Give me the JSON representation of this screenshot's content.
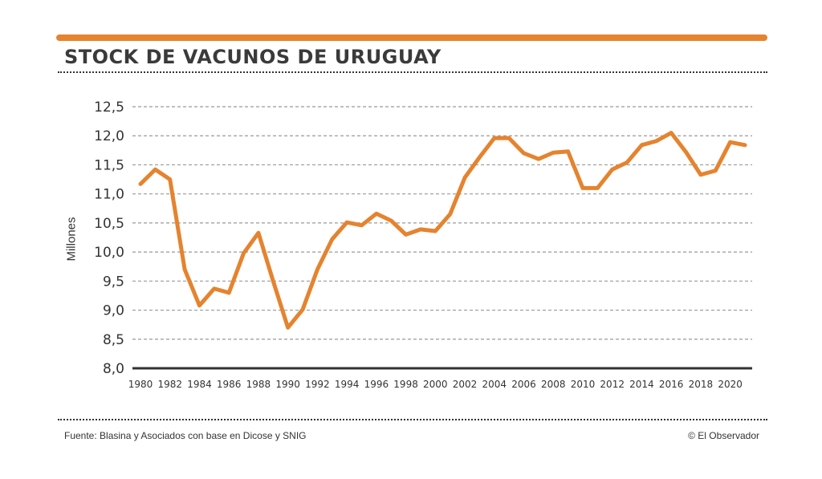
{
  "header": {
    "title": "STOCK DE VACUNOS DE URUGUAY"
  },
  "footer": {
    "source": "Fuente: Blasina y Asociados con base en Dicose y SNIG",
    "credit": "© El Observador"
  },
  "colors": {
    "accent": "#e5832f",
    "text": "#3a3a3a",
    "grid": "#999999"
  },
  "chart_data": {
    "type": "line",
    "title": "STOCK DE VACUNOS DE URUGUAY",
    "xlabel": "",
    "ylabel": "Millones",
    "ylim": [
      8.0,
      12.5
    ],
    "yticks": [
      "8,0",
      "8,5",
      "9,0",
      "9,5",
      "10,0",
      "10,5",
      "11,0",
      "11,5",
      "12,0",
      "12,5"
    ],
    "xticks": [
      "1980",
      "1982",
      "1984",
      "1986",
      "1988",
      "1990",
      "1992",
      "1994",
      "1996",
      "1998",
      "2000",
      "2002",
      "2004",
      "2006",
      "2008",
      "2010",
      "2012",
      "2014",
      "2016",
      "2018",
      "2020"
    ],
    "grid": true,
    "x": [
      1980,
      1981,
      1982,
      1983,
      1984,
      1985,
      1986,
      1987,
      1988,
      1989,
      1990,
      1991,
      1992,
      1993,
      1994,
      1995,
      1996,
      1997,
      1998,
      1999,
      2000,
      2001,
      2002,
      2003,
      2004,
      2005,
      2006,
      2007,
      2008,
      2009,
      2010,
      2011,
      2012,
      2013,
      2014,
      2015,
      2016,
      2017,
      2018,
      2019,
      2020,
      2021
    ],
    "series": [
      {
        "name": "Stock de vacunos",
        "values": [
          11.17,
          11.42,
          11.25,
          9.7,
          9.08,
          9.37,
          9.3,
          9.98,
          10.33,
          9.5,
          8.7,
          9.01,
          9.7,
          10.22,
          10.51,
          10.46,
          10.66,
          10.54,
          10.3,
          10.39,
          10.36,
          10.65,
          11.28,
          11.63,
          11.96,
          11.96,
          11.7,
          11.6,
          11.71,
          11.73,
          11.1,
          11.1,
          11.42,
          11.54,
          11.84,
          11.91,
          12.05,
          11.72,
          11.33,
          11.4,
          11.89,
          11.84
        ]
      }
    ]
  }
}
